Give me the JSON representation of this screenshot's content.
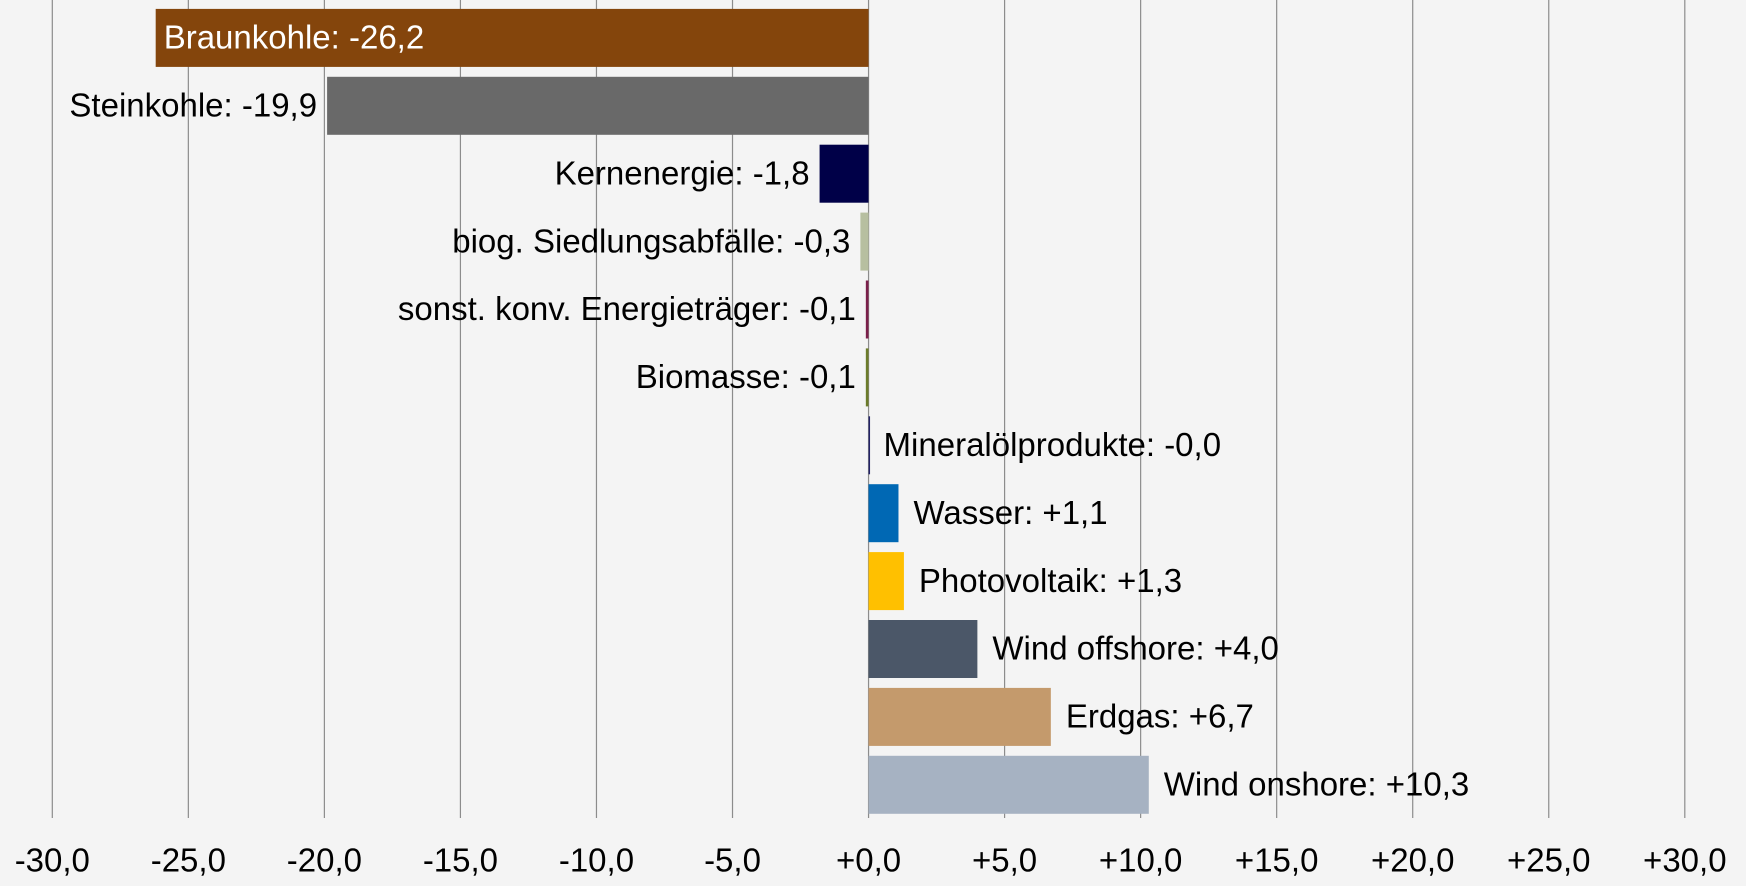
{
  "chart_data": {
    "type": "barh",
    "values": [
      -26.2,
      -19.9,
      -1.8,
      -0.3,
      -0.1,
      -0.1,
      -0.0,
      1.1,
      1.3,
      4.0,
      6.7,
      10.3
    ],
    "value_labels": [
      "Braunkohle: -26,2",
      "Steinkohle: -19,9",
      "Kernenergie: -1,8",
      "biog. Siedlungsabfälle: -0,3",
      "sonst. konv. Energieträger: -0,1",
      "Biomasse: -0,1",
      "Mineralölprodukte: -0,0",
      "Wasser: +1,1",
      "Photovoltaik: +1,3",
      "Wind offshore: +4,0",
      "Erdgas: +6,7",
      "Wind onshore: +10,3"
    ],
    "colors": [
      "#84450c",
      "#696969",
      "#000048",
      "#b7bfa0",
      "#7a1f4a",
      "#6b7b2a",
      "#222266",
      "#0068b4",
      "#ffc000",
      "#4b5768",
      "#c49a6c",
      "#a6b2c2"
    ],
    "xlim": [
      -30,
      30
    ],
    "xticks": [
      {
        "value": -30,
        "label": "-30,0"
      },
      {
        "value": -25,
        "label": "-25,0"
      },
      {
        "value": -20,
        "label": "-20,0"
      },
      {
        "value": -15,
        "label": "-15,0"
      },
      {
        "value": -10,
        "label": "-10,0"
      },
      {
        "value": -5,
        "label": "-5,0"
      },
      {
        "value": 0,
        "label": "+0,0"
      },
      {
        "value": 5,
        "label": "+5,0"
      },
      {
        "value": 10,
        "label": "+10,0"
      },
      {
        "value": 15,
        "label": "+15,0"
      },
      {
        "value": 20,
        "label": "+20,0"
      },
      {
        "value": 25,
        "label": "+25,0"
      },
      {
        "value": 30,
        "label": "+30,0"
      }
    ],
    "grid": true
  }
}
